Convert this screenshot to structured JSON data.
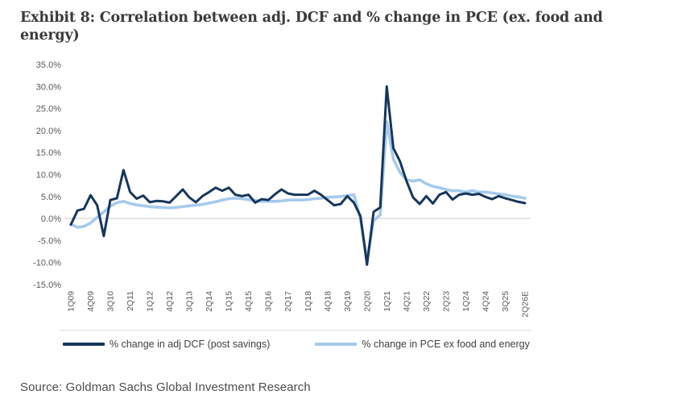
{
  "page": {
    "title": "Exhibit 8: Correlation between adj. DCF and % change in PCE (ex. food and energy)",
    "source": "Source: Goldman Sachs Global Investment Research"
  },
  "chart_data": {
    "type": "line",
    "title": "Exhibit 8: Correlation between adj. DCF and % change in PCE (ex. food and energy)",
    "xlabel": "",
    "ylabel": "",
    "ylim": [
      -15,
      35
    ],
    "y_tick_step": 5,
    "y_ticks": [
      "35.0%",
      "30.0%",
      "25.0%",
      "20.0%",
      "15.0%",
      "10.0%",
      "5.0%",
      "0.0%",
      "-5.0%",
      "-10.0%",
      "-15.0%"
    ],
    "grid": "zero-line-only",
    "legend_position": "bottom",
    "x_label_every": 3,
    "x_ticks_shown": [
      "1Q09",
      "4Q09",
      "3Q10",
      "2Q11",
      "1Q12",
      "4Q12",
      "3Q13",
      "2Q14",
      "1Q15",
      "4Q15",
      "3Q16",
      "2Q17",
      "1Q18",
      "4Q18",
      "3Q19",
      "2Q20",
      "1Q21",
      "4Q21",
      "3Q22",
      "2Q23",
      "1Q24",
      "4Q24",
      "3Q25",
      "2Q26E"
    ],
    "categories": [
      "1Q09",
      "2Q09",
      "3Q09",
      "4Q09",
      "1Q10",
      "2Q10",
      "3Q10",
      "4Q10",
      "1Q11",
      "2Q11",
      "3Q11",
      "4Q11",
      "1Q12",
      "2Q12",
      "3Q12",
      "4Q12",
      "1Q13",
      "2Q13",
      "3Q13",
      "4Q13",
      "1Q14",
      "2Q14",
      "3Q14",
      "4Q14",
      "1Q15",
      "2Q15",
      "3Q15",
      "4Q15",
      "1Q16",
      "2Q16",
      "3Q16",
      "4Q16",
      "1Q17",
      "2Q17",
      "3Q17",
      "4Q17",
      "1Q18",
      "2Q18",
      "3Q18",
      "4Q18",
      "1Q19",
      "2Q19",
      "3Q19",
      "4Q19",
      "1Q20",
      "2Q20",
      "3Q20",
      "4Q20",
      "1Q21",
      "2Q21",
      "3Q21",
      "4Q21",
      "1Q22",
      "2Q22",
      "3Q22",
      "4Q22",
      "1Q23",
      "2Q23",
      "3Q23",
      "4Q23",
      "1Q24",
      "2Q24",
      "3Q24",
      "4Q24",
      "1Q25",
      "2Q25",
      "3Q25",
      "4Q25",
      "1Q26",
      "2Q26E"
    ],
    "series": [
      {
        "name": "% change in adj DCF (post savings)",
        "color": "#17365D",
        "values": [
          -1.4,
          1.8,
          2.2,
          5.3,
          3.0,
          -4.0,
          4.2,
          4.6,
          11.0,
          6.0,
          4.5,
          5.2,
          3.7,
          4.0,
          3.9,
          3.6,
          5.1,
          6.6,
          4.8,
          3.7,
          5.1,
          6.0,
          7.0,
          6.3,
          7.0,
          5.4,
          5.1,
          5.4,
          3.6,
          4.4,
          4.2,
          5.5,
          6.6,
          5.7,
          5.4,
          5.4,
          5.4,
          6.3,
          5.4,
          4.2,
          3.0,
          3.3,
          5.1,
          3.6,
          0.5,
          -10.5,
          1.5,
          2.5,
          30.0,
          16.0,
          13.0,
          8.5,
          4.8,
          3.3,
          5.1,
          3.4,
          5.4,
          6.0,
          4.3,
          5.4,
          5.7,
          5.4,
          5.6,
          4.9,
          4.4,
          5.1,
          4.6,
          4.2,
          3.8,
          3.5
        ]
      },
      {
        "name": "% change in PCE ex food and energy",
        "color": "#A6CAEC",
        "values": [
          -1.3,
          -2.0,
          -1.8,
          -1.0,
          0.3,
          1.5,
          2.8,
          3.6,
          3.9,
          3.4,
          3.1,
          2.9,
          2.7,
          2.6,
          2.5,
          2.4,
          2.5,
          2.7,
          2.9,
          3.0,
          3.2,
          3.5,
          3.8,
          4.2,
          4.5,
          4.6,
          4.5,
          4.3,
          4.1,
          3.9,
          3.9,
          3.9,
          4.0,
          4.2,
          4.2,
          4.2,
          4.3,
          4.5,
          4.6,
          4.8,
          4.9,
          5.0,
          5.2,
          5.4,
          0.0,
          -9.5,
          -0.5,
          0.8,
          22.0,
          13.5,
          10.5,
          8.8,
          8.5,
          8.8,
          7.9,
          7.3,
          7.0,
          6.6,
          6.3,
          6.3,
          6.0,
          6.3,
          6.0,
          6.0,
          5.8,
          5.6,
          5.4,
          5.1,
          4.9,
          4.6
        ]
      }
    ],
    "colors": {
      "zero_line": "#d6d6d6",
      "bottom_rule": "#dcdcdc",
      "axis_text": "#595959"
    }
  }
}
